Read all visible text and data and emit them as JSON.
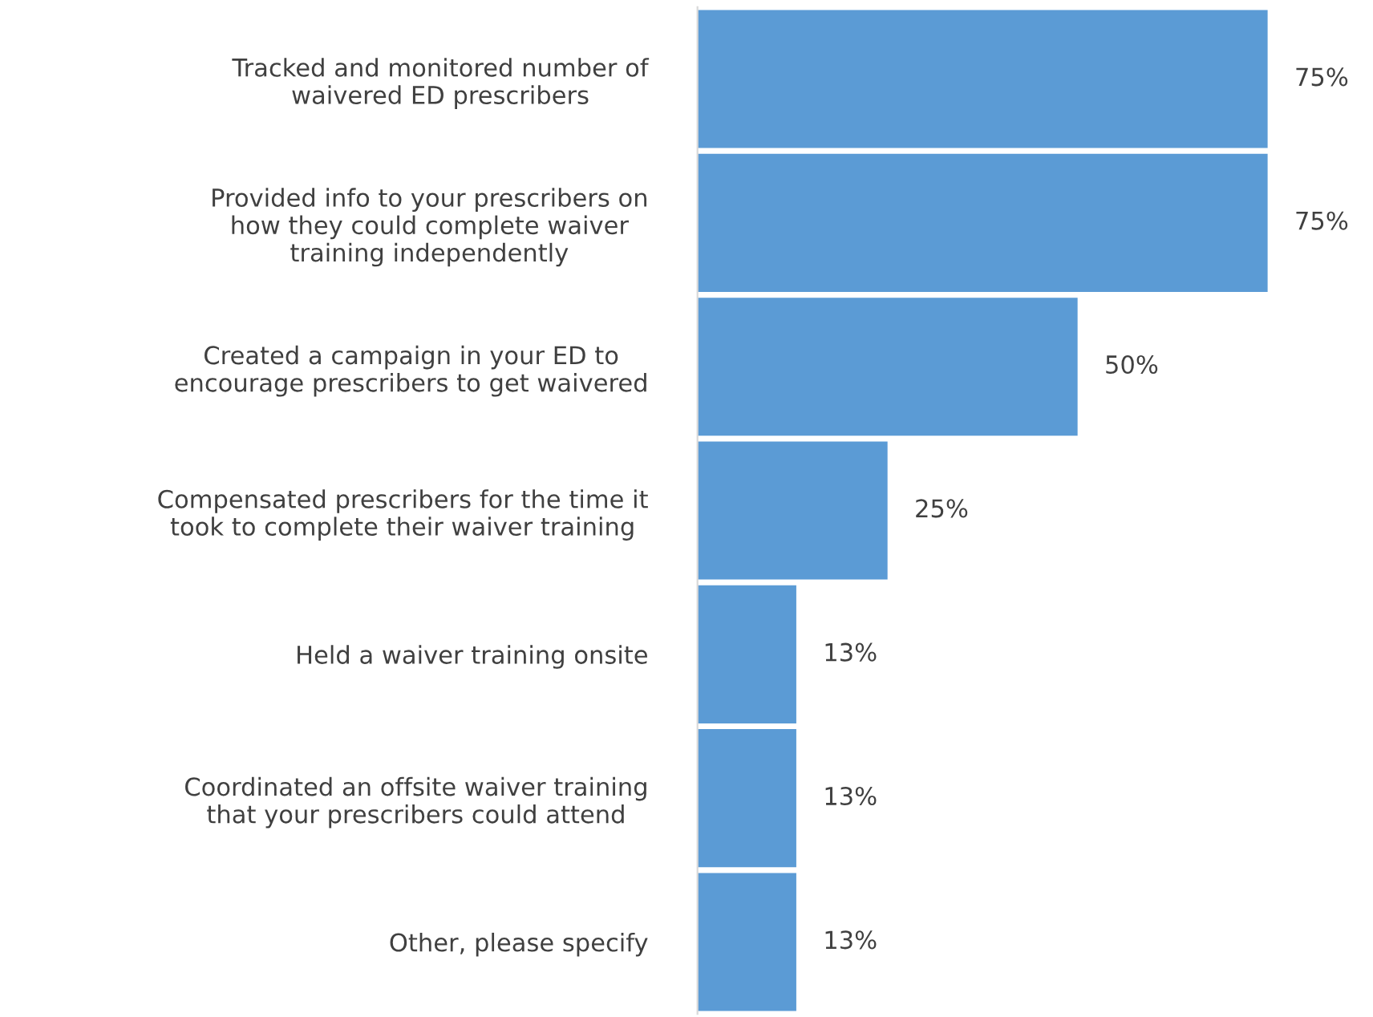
{
  "chart_data": {
    "type": "bar",
    "orientation": "horizontal",
    "categories": [
      "Tracked and monitored number of\nwaivered ED prescribers",
      "Provided info to your prescribers on\nhow they could complete waiver\ntraining independently",
      "Created a campaign in your ED to\nencourage prescribers to get waivered",
      "Compensated prescribers for the time it\ntook to complete their waiver training",
      "Held a waiver training onsite",
      "Coordinated an offsite waiver training\nthat your prescribers could attend",
      "Other, please specify"
    ],
    "values": [
      75,
      75,
      50,
      25,
      13,
      13,
      13
    ],
    "value_labels": [
      "75%",
      "75%",
      "50%",
      "25%",
      "13%",
      "13%",
      "13%"
    ],
    "color": "#5b9bd5",
    "grid": false,
    "legend": false
  }
}
